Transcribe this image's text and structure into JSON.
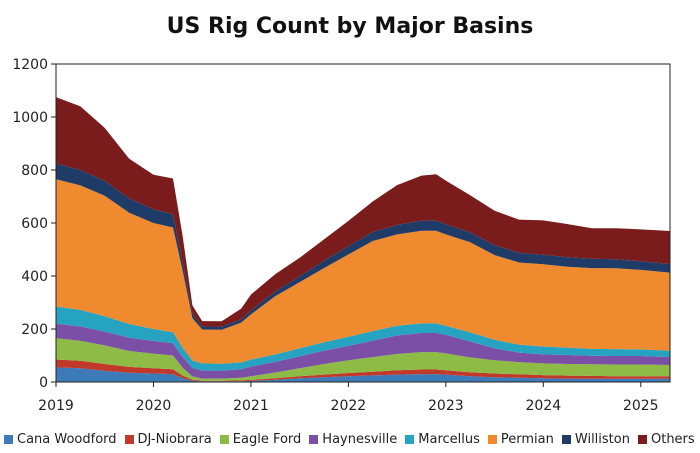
{
  "chart_data": {
    "type": "area",
    "title": "US Rig Count by Major Basins",
    "xlabel": "",
    "ylabel": "",
    "ylim": [
      0,
      1200
    ],
    "xlim": [
      2019.0,
      2025.3
    ],
    "stacked": true,
    "grid": false,
    "legend_position": "bottom",
    "yticks": [
      "0",
      "200",
      "400",
      "600",
      "800",
      "1000",
      "1200"
    ],
    "xticks": [
      "2019",
      "2020",
      "2021",
      "2022",
      "2023",
      "2024",
      "2025"
    ],
    "x": [
      2019.0,
      2019.25,
      2019.5,
      2019.75,
      2020.0,
      2020.2,
      2020.3,
      2020.4,
      2020.5,
      2020.7,
      2020.9,
      2021.0,
      2021.25,
      2021.5,
      2021.75,
      2022.0,
      2022.25,
      2022.5,
      2022.75,
      2022.9,
      2023.0,
      2023.25,
      2023.5,
      2023.75,
      2024.0,
      2024.25,
      2024.5,
      2024.75,
      2025.0,
      2025.3
    ],
    "series": [
      {
        "name": "Cana Woodford",
        "color": "#3d7ab8",
        "values": [
          55,
          52,
          42,
          35,
          32,
          30,
          14,
          5,
          3,
          3,
          3,
          4,
          8,
          14,
          18,
          22,
          25,
          28,
          30,
          30,
          28,
          22,
          18,
          16,
          14,
          12,
          12,
          12,
          12,
          12
        ]
      },
      {
        "name": "DJ-Niobrara",
        "color": "#c0392b",
        "values": [
          30,
          28,
          26,
          22,
          20,
          18,
          10,
          4,
          2,
          2,
          3,
          4,
          6,
          8,
          10,
          12,
          14,
          16,
          17,
          17,
          16,
          15,
          14,
          13,
          12,
          12,
          11,
          10,
          10,
          10
        ]
      },
      {
        "name": "Eagle Ford",
        "color": "#8dbb45",
        "values": [
          80,
          76,
          70,
          60,
          55,
          52,
          30,
          12,
          8,
          8,
          10,
          14,
          22,
          30,
          40,
          48,
          55,
          62,
          66,
          66,
          64,
          56,
          50,
          46,
          44,
          44,
          44,
          44,
          44,
          42
        ]
      },
      {
        "name": "Haynesville",
        "color": "#7b4fa6",
        "values": [
          55,
          54,
          52,
          50,
          48,
          46,
          40,
          32,
          30,
          30,
          32,
          36,
          40,
          45,
          50,
          55,
          62,
          70,
          72,
          72,
          70,
          60,
          45,
          36,
          34,
          34,
          32,
          32,
          32,
          30
        ]
      },
      {
        "name": "Marcellus",
        "color": "#26a3c0",
        "values": [
          65,
          62,
          58,
          52,
          45,
          42,
          35,
          28,
          27,
          26,
          26,
          27,
          28,
          30,
          32,
          34,
          36,
          36,
          36,
          36,
          34,
          34,
          32,
          30,
          30,
          28,
          26,
          26,
          25,
          24
        ]
      },
      {
        "name": "Permian",
        "color": "#ef8a2e",
        "values": [
          480,
          470,
          455,
          420,
          400,
          395,
          290,
          160,
          128,
          128,
          150,
          170,
          220,
          250,
          280,
          310,
          340,
          345,
          350,
          350,
          345,
          340,
          320,
          310,
          310,
          305,
          305,
          305,
          300,
          295
        ]
      },
      {
        "name": "Williston",
        "color": "#1f3b68",
        "values": [
          60,
          58,
          56,
          54,
          52,
          50,
          35,
          18,
          12,
          12,
          13,
          15,
          18,
          22,
          28,
          32,
          34,
          36,
          38,
          38,
          38,
          38,
          37,
          37,
          36,
          36,
          35,
          34,
          33,
          32
        ]
      },
      {
        "name": "Others",
        "color": "#7a1c1c",
        "values": [
          250,
          240,
          200,
          150,
          130,
          135,
          95,
          30,
          20,
          20,
          40,
          60,
          65,
          70,
          80,
          95,
          115,
          150,
          170,
          175,
          165,
          140,
          130,
          125,
          130,
          125,
          115,
          117,
          120,
          125
        ]
      }
    ]
  }
}
